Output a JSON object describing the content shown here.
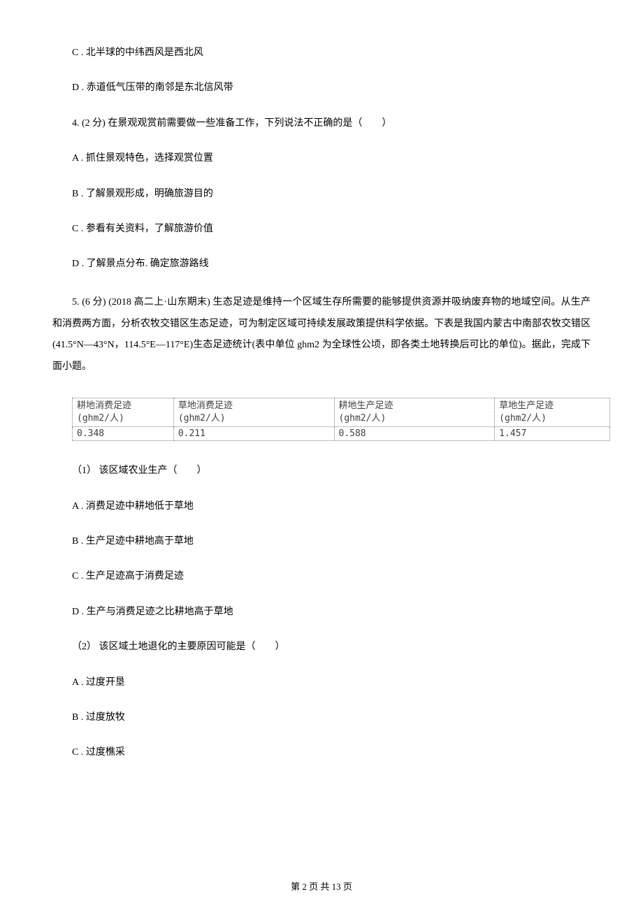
{
  "q3": {
    "optC": "C .  北半球的中纬西风是西北风",
    "optD": "D .  赤道低气压带的南邻是东北信风带"
  },
  "q4": {
    "stem": "4.  (2 分)  在景观观赏前需要做一些准备工作，下列说法不正确的是（　　）",
    "optA": "A .  抓住景观特色，选择观赏位置",
    "optB": "B .  了解景观形成，明确旅游目的",
    "optC": "C .  参看有关资料，了解旅游价值",
    "optD": "D .  了解景点分布. 确定旅游路线"
  },
  "q5": {
    "stem": "5.  (6 分)  (2018 高二上·山东期末)  生态足迹是维持一个区域生存所需要的能够提供资源并吸纳废弃物的地域空间。从生产和消费两方面，分析农牧交错区生态足迹，可为制定区域可持续发展政策提供科学依据。下表是我国内蒙古中南部农牧交错区(41.5°N—43°N，114.5°E—117°E)生态足迹统计(表中单位 ghm2 为全球性公顷，即各类土地转换后可比的单位)。据此，完成下面小题。",
    "table": {
      "columns": [
        {
          "header1": "耕地消费足迹",
          "header2": "(ghm2/人)"
        },
        {
          "header1": "草地消费足迹",
          "header2": "(ghm2/人)"
        },
        {
          "header1": "耕地生产足迹",
          "header2": "(ghm2/人)"
        },
        {
          "header1": "草地生产足迹",
          "header2": "(ghm2/人)"
        }
      ],
      "rows": [
        [
          "0.348",
          "0.211",
          "0.588",
          "1.457"
        ]
      ]
    },
    "sub1": {
      "stem": "（1）  该区域农业生产（　　）",
      "optA": "A .  消费足迹中耕地低于草地",
      "optB": "B .  生产足迹中耕地高于草地",
      "optC": "C .  生产足迹高于消费足迹",
      "optD": "D .  生产与消费足迹之比耕地高于草地"
    },
    "sub2": {
      "stem": "（2）  该区域土地退化的主要原因可能是（　　）",
      "optA": "A .  过度开垦",
      "optB": "B .  过度放牧",
      "optC": "C .  过度樵采"
    }
  },
  "footer": "第 2 页 共 13 页"
}
